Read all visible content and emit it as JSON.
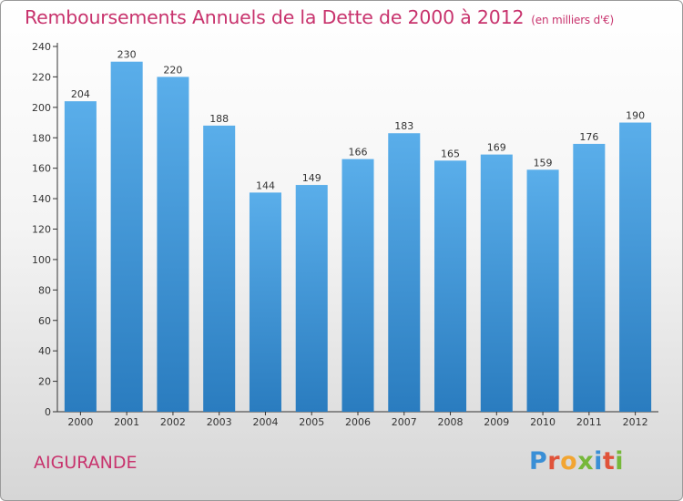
{
  "title": "Remboursements Annuels de la Dette de 2000 à 2012",
  "subtitle": "(en milliers d'€)",
  "commune": "AIGURANDE",
  "logo": {
    "letters": [
      "P",
      "r",
      "o",
      "x",
      "i",
      "t",
      "i"
    ],
    "colors": [
      "#3a8fd6",
      "#e0533a",
      "#f2a531",
      "#76b83a",
      "#3a8fd6",
      "#e0533a",
      "#76b83a"
    ]
  },
  "chart_data": {
    "type": "bar",
    "categories": [
      "2000",
      "2001",
      "2002",
      "2003",
      "2004",
      "2005",
      "2006",
      "2007",
      "2008",
      "2009",
      "2010",
      "2011",
      "2012"
    ],
    "values": [
      204,
      230,
      220,
      188,
      144,
      149,
      166,
      183,
      165,
      169,
      159,
      176,
      190
    ],
    "title": "Remboursements Annuels de la Dette de 2000 à 2012",
    "xlabel": "",
    "ylabel": "",
    "ylim": [
      0,
      240
    ],
    "yticks": [
      0,
      20,
      40,
      60,
      80,
      100,
      120,
      140,
      160,
      180,
      200,
      220,
      240
    ],
    "grid": false,
    "bar_color_top": "#5aaeea",
    "bar_color_bottom": "#2a7cbf"
  }
}
